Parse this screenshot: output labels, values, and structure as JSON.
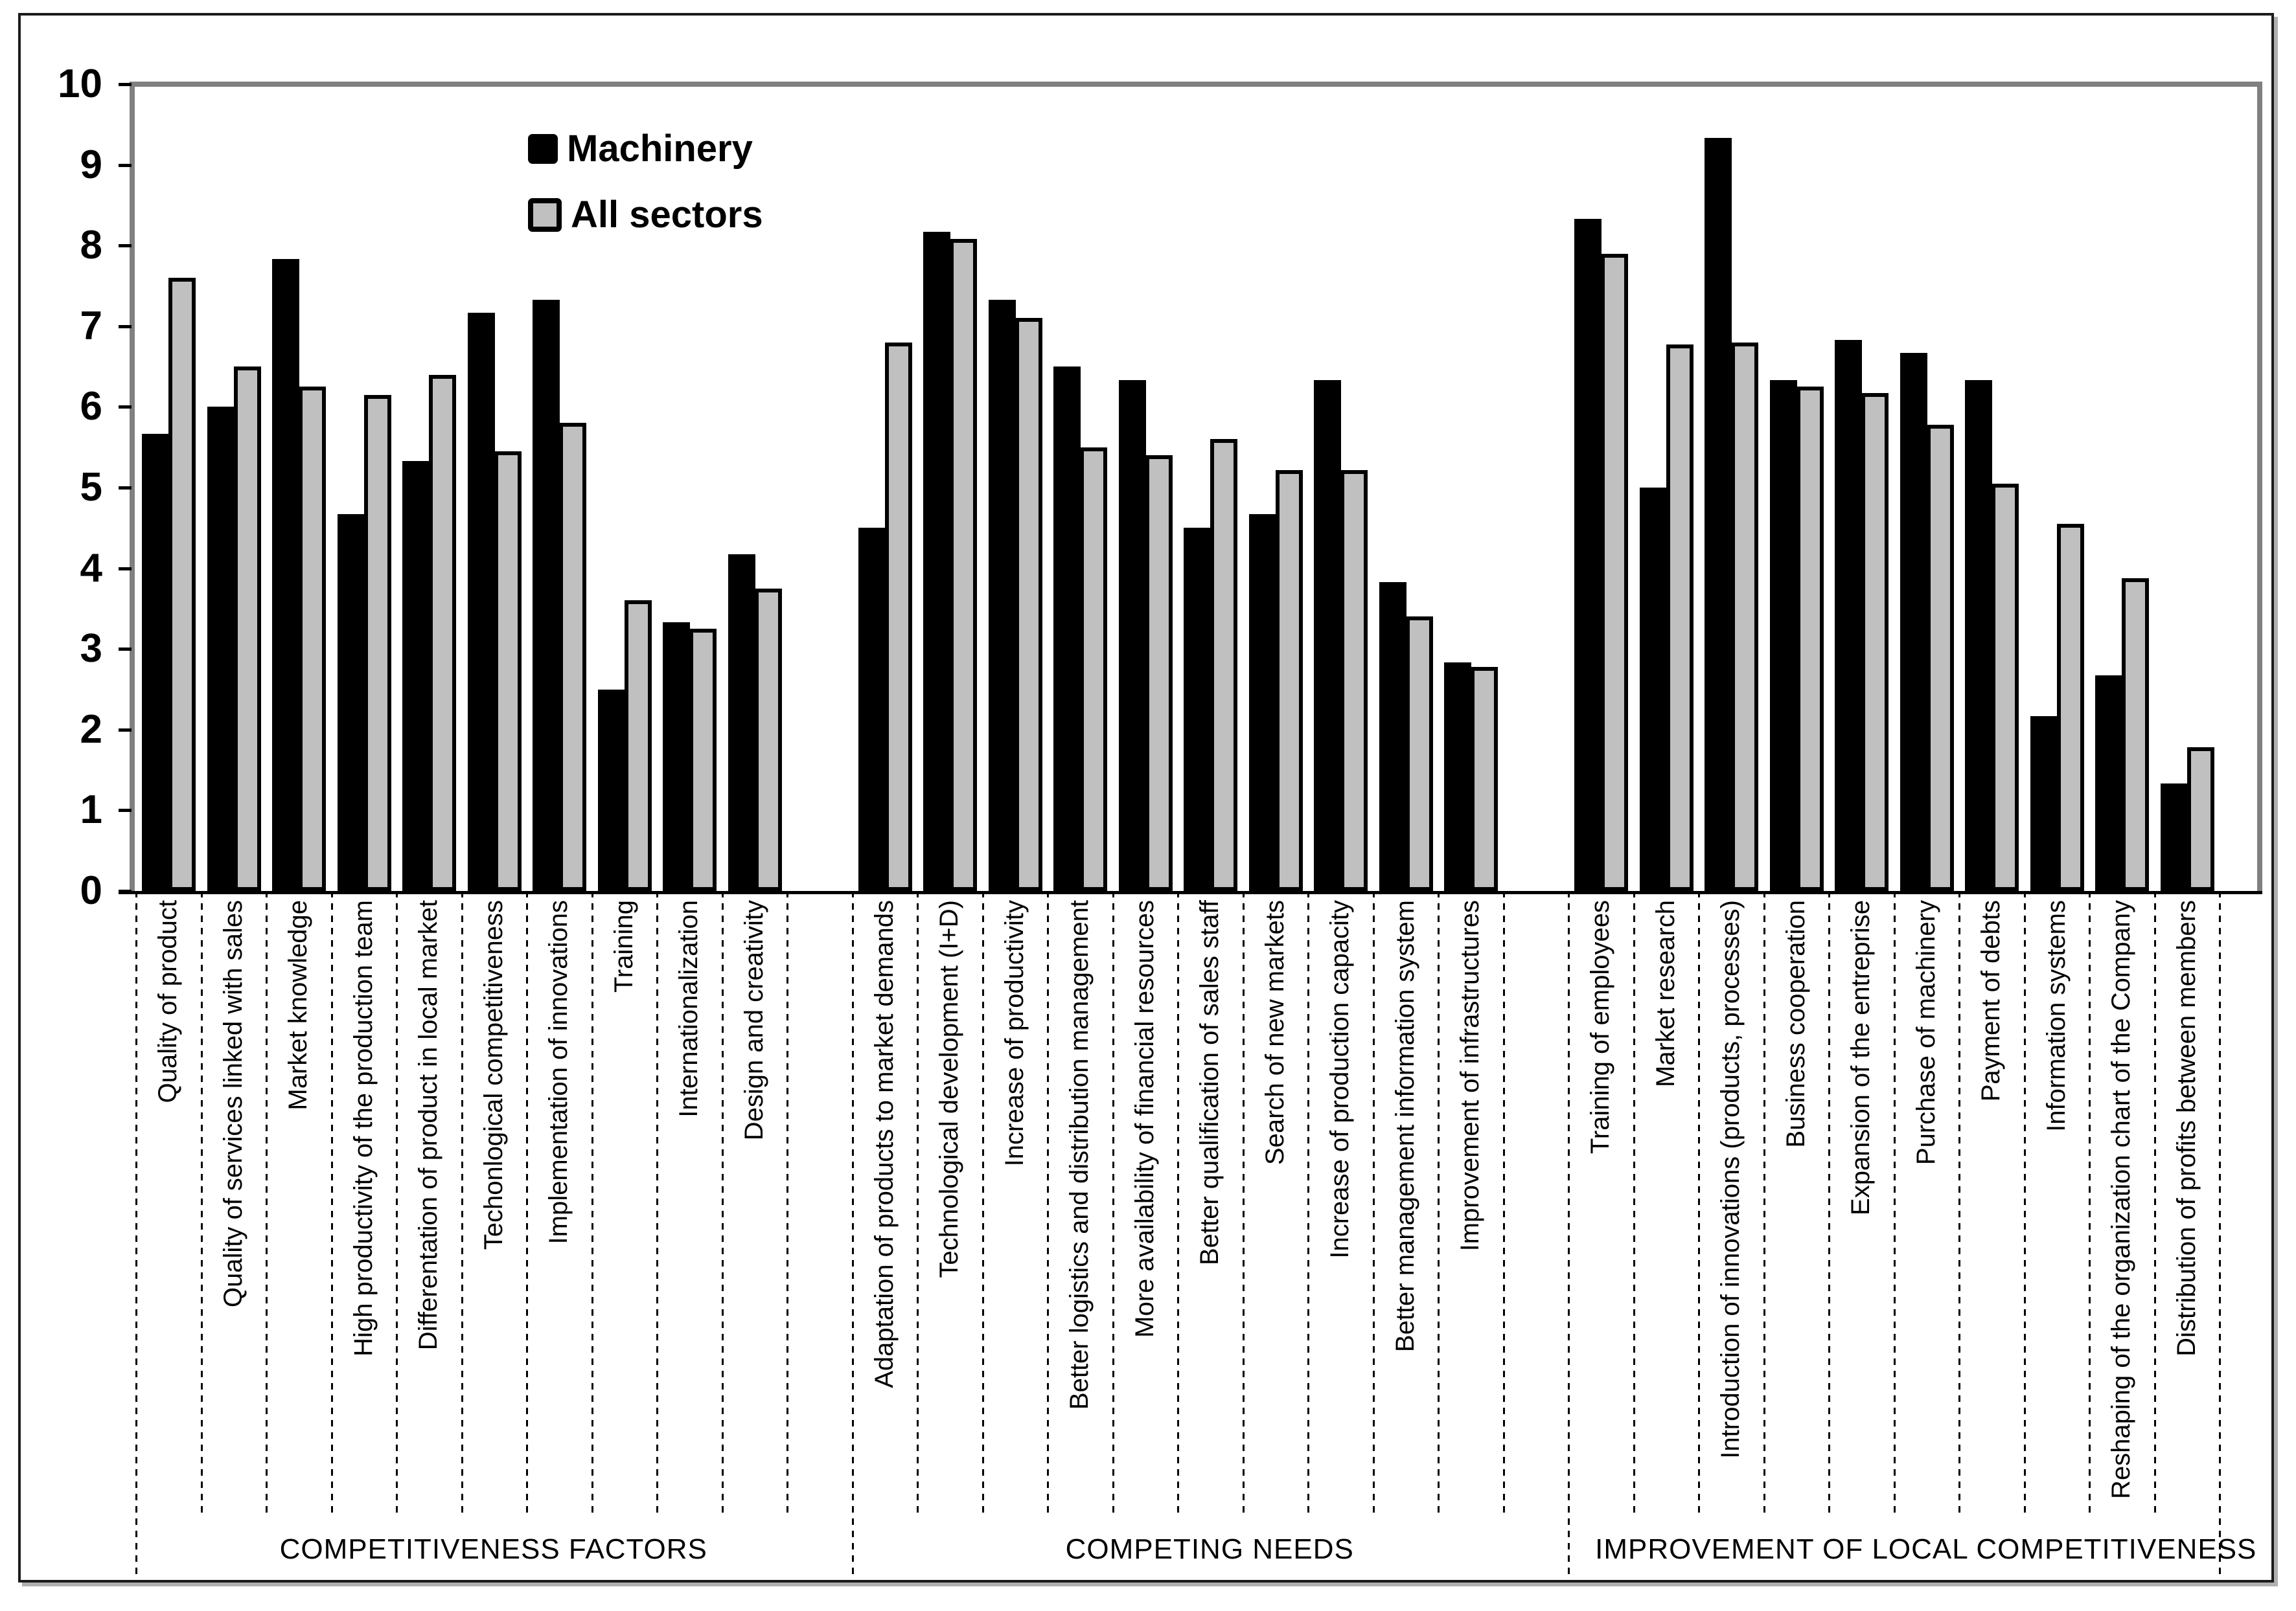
{
  "chart_data": {
    "type": "bar",
    "title": "",
    "xlabel": "",
    "ylabel": "",
    "ylim": [
      0,
      10
    ],
    "yticks": [
      0,
      1,
      2,
      3,
      4,
      5,
      6,
      7,
      8,
      9,
      10
    ],
    "grid": false,
    "legend_position": "top-left-inside",
    "series": [
      {
        "name": "Machinery",
        "color": "#000000"
      },
      {
        "name": "All sectors",
        "color": "#c0c0c0"
      }
    ],
    "colors": {
      "bar_outline": "#000000",
      "wall": "#808080",
      "axis": "#000000",
      "text": "#000000"
    },
    "groups": [
      {
        "label": "COMPETITIVENESS FACTORS",
        "categories": [
          {
            "label": "Quality of product",
            "values": [
              5.67,
              7.6
            ]
          },
          {
            "label": "Quality of services linked with sales",
            "values": [
              6.0,
              6.5
            ]
          },
          {
            "label": "Market knowledge",
            "values": [
              7.83,
              6.25
            ]
          },
          {
            "label": "High productivity of the production team",
            "values": [
              4.67,
              6.15
            ]
          },
          {
            "label": "Differentation of product in local market",
            "values": [
              5.33,
              6.4
            ]
          },
          {
            "label": "Techonlogical competitiveness",
            "values": [
              7.17,
              5.45
            ]
          },
          {
            "label": "Implementation of innovations",
            "values": [
              7.33,
              5.8
            ]
          },
          {
            "label": "Training",
            "values": [
              2.5,
              3.6
            ]
          },
          {
            "label": "Internationalization",
            "values": [
              3.33,
              3.25
            ]
          },
          {
            "label": "Design and creativity",
            "values": [
              4.17,
              3.75
            ]
          }
        ]
      },
      {
        "label": "COMPETING NEEDS",
        "categories": [
          {
            "label": "Adaptation of products to market demands",
            "values": [
              4.5,
              6.8
            ]
          },
          {
            "label": "Technological development (I+D)",
            "values": [
              8.17,
              8.08
            ]
          },
          {
            "label": "Increase of productivity",
            "values": [
              7.33,
              7.1
            ]
          },
          {
            "label": "Better logistics and distribution management",
            "values": [
              6.5,
              5.5
            ]
          },
          {
            "label": "More availability of financial resources",
            "values": [
              6.33,
              5.4
            ]
          },
          {
            "label": "Better qualification of sales staff",
            "values": [
              4.5,
              5.6
            ]
          },
          {
            "label": "Search of new markets",
            "values": [
              4.67,
              5.22
            ]
          },
          {
            "label": "Increase of production capacity",
            "values": [
              6.33,
              5.22
            ]
          },
          {
            "label": "Better management information system",
            "values": [
              3.83,
              3.4
            ]
          },
          {
            "label": "Improvement of infrastructures",
            "values": [
              2.83,
              2.78
            ]
          }
        ]
      },
      {
        "label": "IMPROVEMENT OF LOCAL COMPETITIVENESS",
        "categories": [
          {
            "label": "Training of employees",
            "values": [
              8.33,
              7.9
            ]
          },
          {
            "label": "Market research",
            "values": [
              5.0,
              6.77
            ]
          },
          {
            "label": "Introduction of innovations (products, processes)",
            "values": [
              9.33,
              6.8
            ]
          },
          {
            "label": "Business cooperation",
            "values": [
              6.33,
              6.25
            ]
          },
          {
            "label": "Expansion of the entreprise",
            "values": [
              6.83,
              6.17
            ]
          },
          {
            "label": "Purchase of machinery",
            "values": [
              6.67,
              5.78
            ]
          },
          {
            "label": "Payment of debts",
            "values": [
              6.33,
              5.05
            ]
          },
          {
            "label": "Information systems",
            "values": [
              2.17,
              4.55
            ]
          },
          {
            "label": "Reshaping of the organization chart of the Company",
            "values": [
              2.67,
              3.88
            ]
          },
          {
            "label": "Distribution of profits between members",
            "values": [
              1.33,
              1.78
            ]
          }
        ]
      }
    ]
  }
}
